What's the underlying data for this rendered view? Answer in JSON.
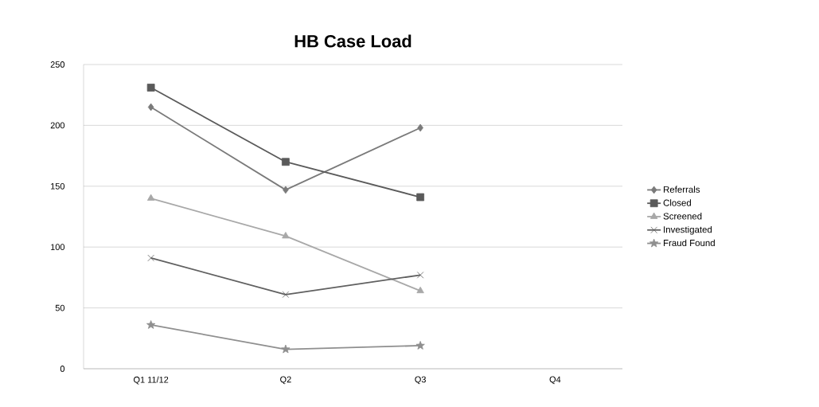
{
  "chart_data": {
    "type": "line",
    "title": "HB Case Load",
    "categories": [
      "Q1 11/12",
      "Q2",
      "Q3",
      "Q4"
    ],
    "series": [
      {
        "name": "Referrals",
        "color": "#7a7a7a",
        "marker": "diamond",
        "values": [
          215,
          147,
          198,
          null
        ]
      },
      {
        "name": "Closed",
        "color": "#5a5a5a",
        "marker": "square",
        "values": [
          231,
          170,
          141,
          null
        ]
      },
      {
        "name": "Screened",
        "color": "#a8a8a8",
        "marker": "triangle",
        "values": [
          140,
          109,
          64,
          null
        ]
      },
      {
        "name": "Investigated",
        "color": "#606060",
        "marker": "cross",
        "values": [
          91,
          61,
          77,
          null
        ]
      },
      {
        "name": "Fraud Found",
        "color": "#8f8f8f",
        "marker": "star",
        "values": [
          36,
          16,
          19,
          null
        ]
      }
    ],
    "ylim": [
      0,
      250
    ],
    "yticks": [
      0,
      50,
      100,
      150,
      200,
      250
    ],
    "grid": "y",
    "legend": "right",
    "line_style": "solid"
  }
}
